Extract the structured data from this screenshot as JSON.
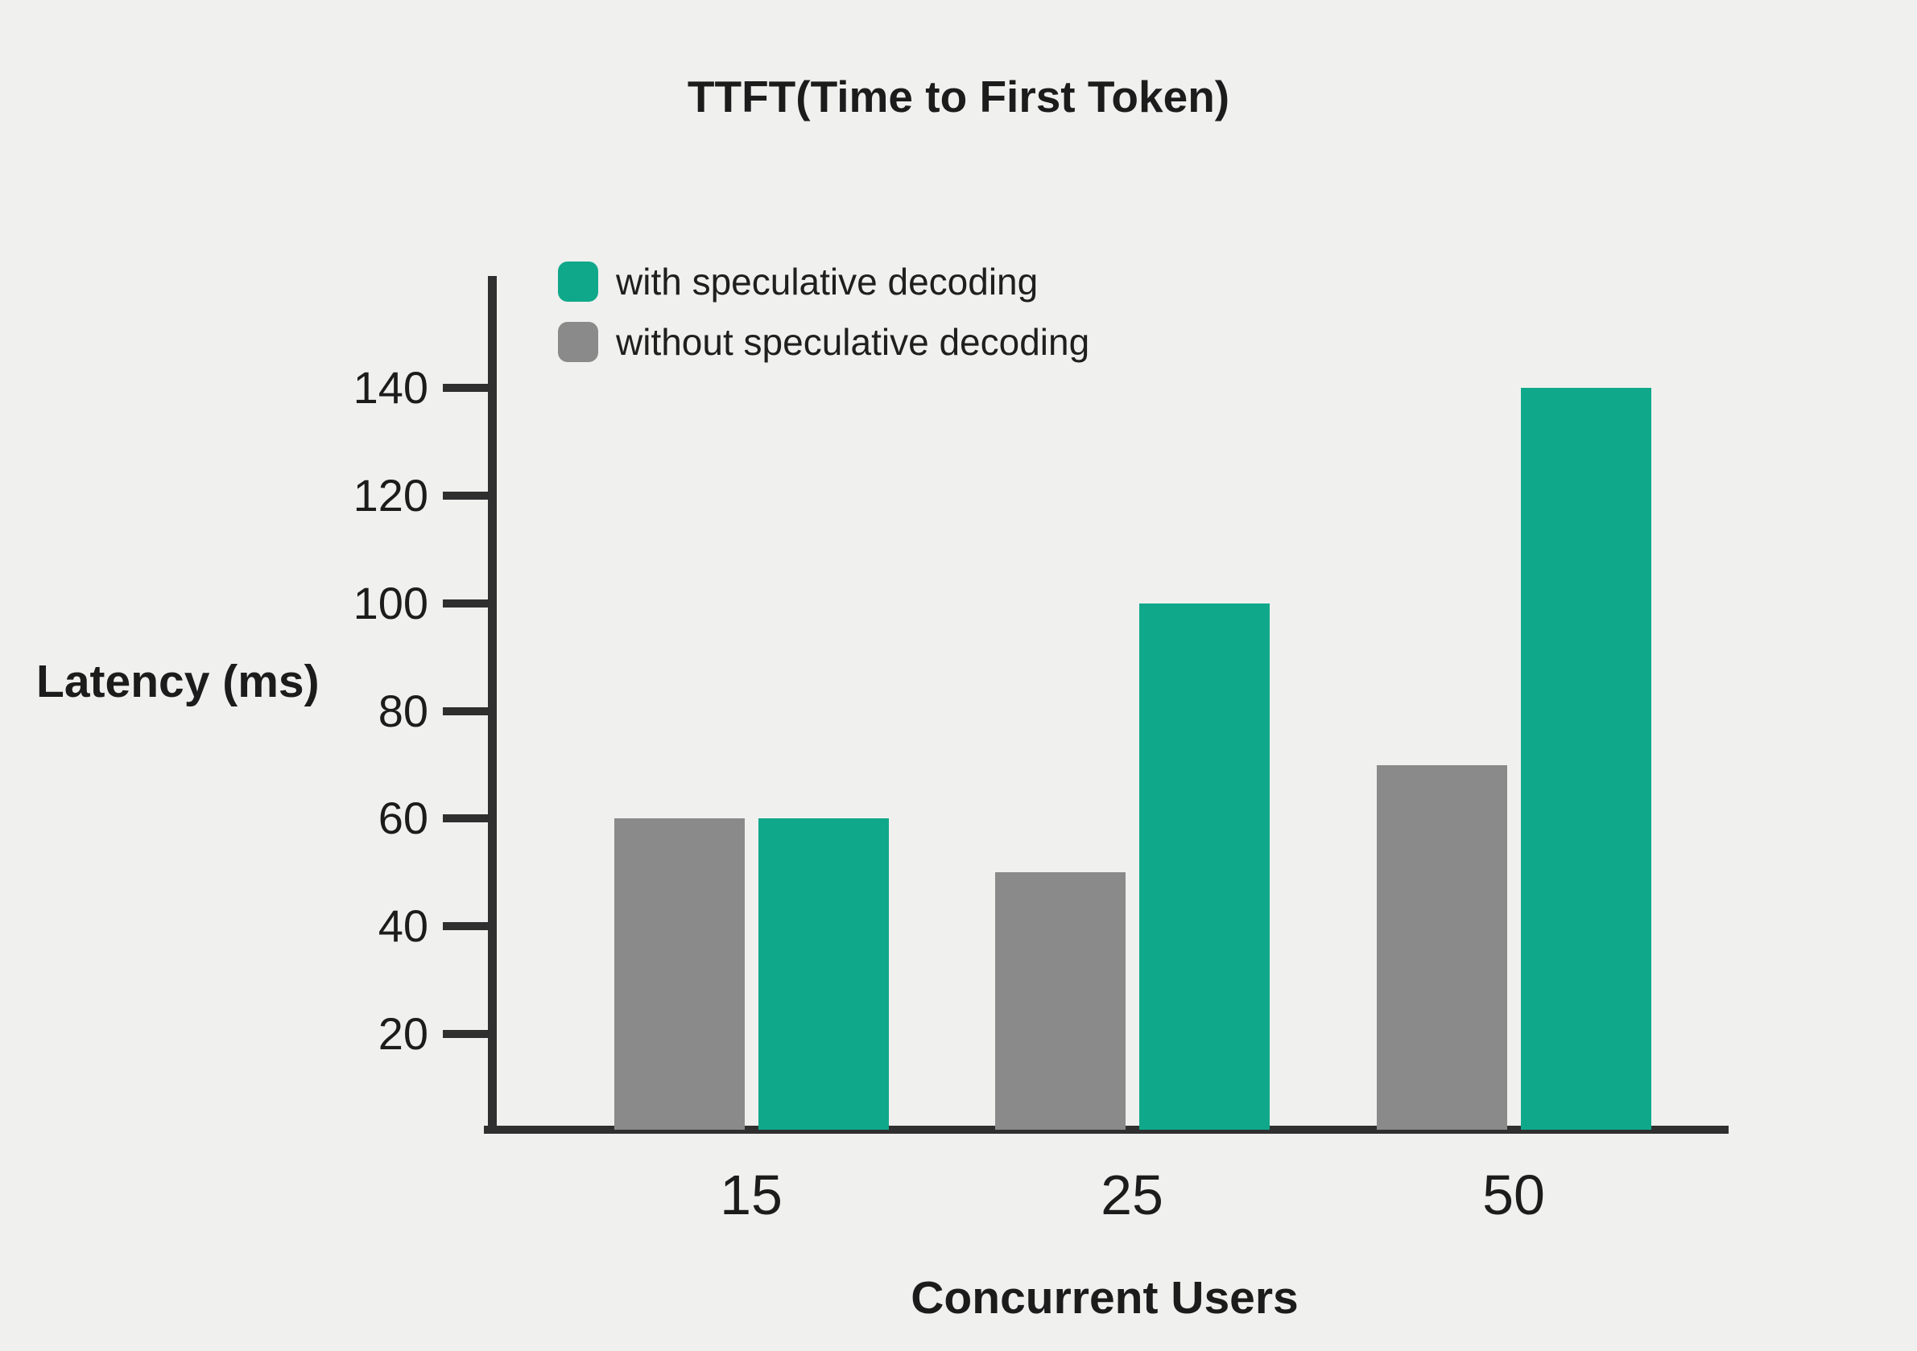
{
  "title": "TTFT(Time to First Token)",
  "colors": {
    "background": "#f0f0ef",
    "axis": "#2f2f2f",
    "text": "#1c1c1c",
    "teal_series": "#10a88a",
    "gray_series": "#8a8a8a"
  },
  "legend": {
    "items": [
      {
        "label": "with speculative decoding",
        "color": "#10a88a"
      },
      {
        "label": "without speculative decoding",
        "color": "#8a8a8a"
      }
    ]
  },
  "chart_data": {
    "type": "bar",
    "title": "TTFT(Time to First Token)",
    "xlabel": "Concurrent Users",
    "ylabel": "Latency (ms)",
    "categories": [
      "15",
      "25",
      "50"
    ],
    "series": [
      {
        "name": "without speculative decoding",
        "color": "#8a8a8a",
        "values": [
          60,
          50,
          70
        ]
      },
      {
        "name": "with speculative decoding",
        "color": "#10a88a",
        "values": [
          60,
          100,
          140
        ]
      }
    ],
    "yticks": [
      20,
      40,
      60,
      80,
      100,
      120,
      140
    ],
    "ylim": [
      0,
      150
    ],
    "grid": false,
    "legend_position": "top-left-inside"
  }
}
